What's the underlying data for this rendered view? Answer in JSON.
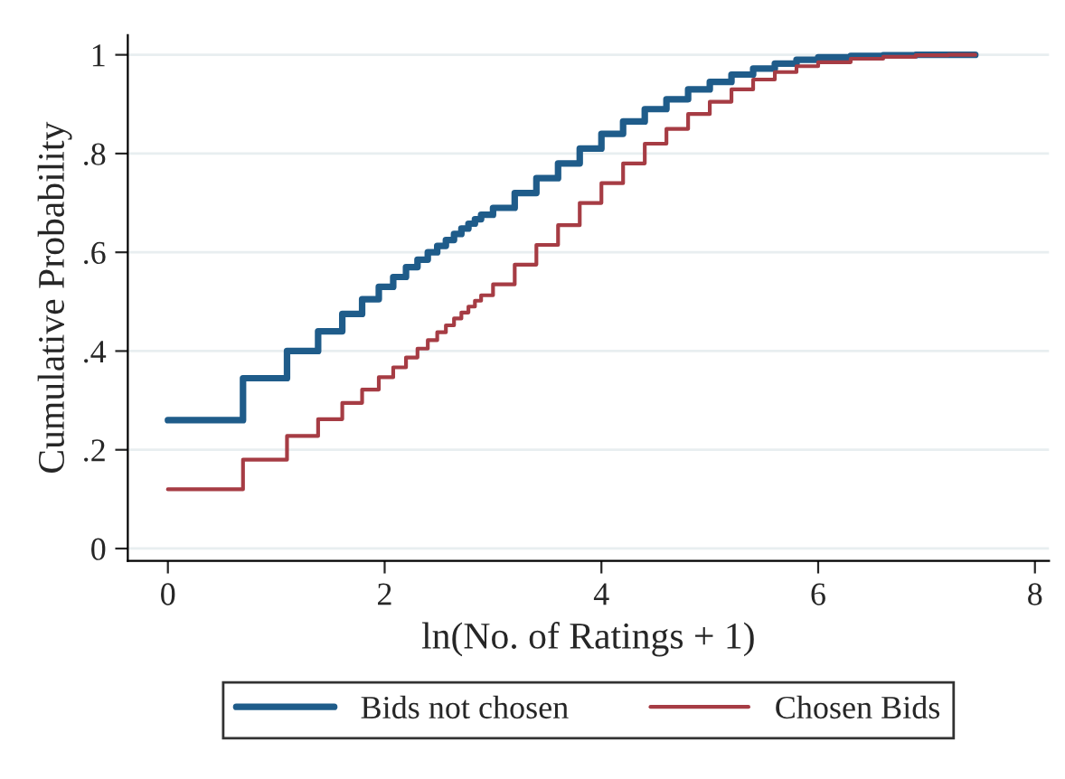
{
  "chart_data": {
    "type": "step",
    "xlabel": "ln(No. of Ratings + 1)",
    "ylabel": "Cumulative Probability",
    "x": [
      0,
      0.693,
      1.099,
      1.386,
      1.609,
      1.792,
      1.946,
      2.079,
      2.197,
      2.303,
      2.398,
      2.485,
      2.565,
      2.64,
      2.708,
      2.773,
      2.833,
      2.89,
      3.0,
      3.2,
      3.4,
      3.6,
      3.8,
      4.0,
      4.2,
      4.4,
      4.6,
      4.8,
      5.0,
      5.2,
      5.4,
      5.6,
      5.8,
      6.0,
      6.3,
      6.6,
      6.9,
      7.2,
      7.45
    ],
    "series": [
      {
        "name": "Bids not chosen",
        "color": "#1f5c8a",
        "values": [
          0.26,
          0.345,
          0.4,
          0.44,
          0.475,
          0.505,
          0.53,
          0.55,
          0.57,
          0.585,
          0.6,
          0.613,
          0.625,
          0.637,
          0.648,
          0.658,
          0.667,
          0.676,
          0.69,
          0.72,
          0.75,
          0.78,
          0.81,
          0.84,
          0.865,
          0.89,
          0.91,
          0.93,
          0.945,
          0.96,
          0.972,
          0.982,
          0.99,
          0.995,
          0.998,
          0.999,
          1,
          1,
          1
        ]
      },
      {
        "name": "Chosen Bids",
        "color": "#a63c44",
        "values": [
          0.12,
          0.18,
          0.228,
          0.262,
          0.295,
          0.322,
          0.347,
          0.367,
          0.387,
          0.405,
          0.422,
          0.438,
          0.452,
          0.466,
          0.478,
          0.49,
          0.502,
          0.513,
          0.535,
          0.575,
          0.615,
          0.655,
          0.7,
          0.74,
          0.78,
          0.82,
          0.85,
          0.88,
          0.905,
          0.93,
          0.95,
          0.965,
          0.977,
          0.985,
          0.992,
          0.996,
          0.999,
          1,
          1
        ]
      }
    ],
    "xlim": [
      -0.37,
      8.13
    ],
    "xticks": [
      0,
      2,
      4,
      6,
      8
    ],
    "ylim": [
      -0.025,
      1.04
    ],
    "yticks": [
      0,
      {
        "value": 0.2,
        "label": ".2"
      },
      {
        "value": 0.4,
        "label": ".4"
      },
      {
        "value": 0.6,
        "label": ".6"
      },
      {
        "value": 0.8,
        "label": ".8"
      },
      1
    ],
    "grid": "y",
    "legend": "bottom"
  }
}
